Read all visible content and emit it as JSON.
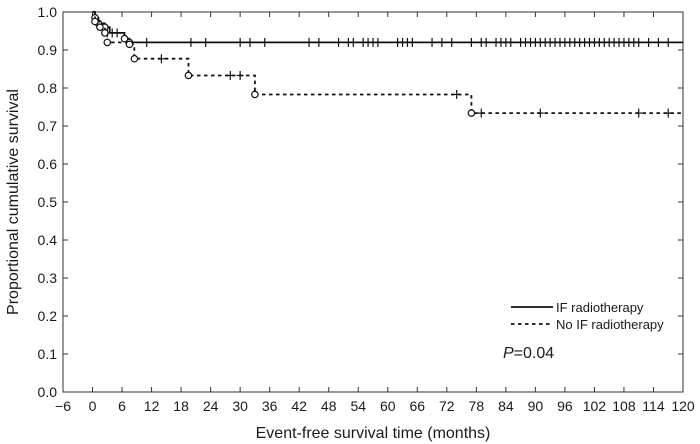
{
  "chart_data": {
    "type": "line",
    "title": "",
    "xlabel": "Event-free survival time (months)",
    "ylabel": "Proportional cumulative survival",
    "xlim": [
      -6,
      120
    ],
    "ylim": [
      0.0,
      1.0
    ],
    "x_ticks": [
      -6,
      0,
      6,
      12,
      18,
      24,
      30,
      36,
      42,
      48,
      54,
      60,
      66,
      72,
      78,
      84,
      90,
      96,
      102,
      108,
      114,
      120
    ],
    "y_ticks": [
      0.0,
      0.1,
      0.2,
      0.3,
      0.4,
      0.5,
      0.6,
      0.7,
      0.8,
      0.9,
      1.0
    ],
    "x_tick_labels": [
      "−6",
      "0",
      "6",
      "12",
      "18",
      "24",
      "30",
      "36",
      "42",
      "48",
      "54",
      "60",
      "66",
      "72",
      "78",
      "84",
      "90",
      "96",
      "102",
      "108",
      "114",
      "120"
    ],
    "y_tick_labels": [
      "0.0",
      "0.1",
      "0.2",
      "0.3",
      "0.4",
      "0.5",
      "0.6",
      "0.7",
      "0.8",
      "0.9",
      "1.0"
    ],
    "grid": false,
    "legend_position": "bottom-right",
    "annotation": {
      "italic": "P",
      "rest": "=0.04"
    },
    "series": [
      {
        "name": "IF radiotherapy",
        "line_style": "solid",
        "steps": [
          [
            0,
            1.0
          ],
          [
            0.5,
            0.985
          ],
          [
            1.2,
            0.97
          ],
          [
            2.5,
            0.96
          ],
          [
            3.5,
            0.945
          ],
          [
            6.5,
            0.93
          ],
          [
            7.5,
            0.92
          ],
          [
            120,
            0.92
          ]
        ],
        "events": [
          [
            0.5,
            0.985
          ],
          [
            1.2,
            0.97
          ],
          [
            2.5,
            0.96
          ],
          [
            6.5,
            0.93
          ],
          [
            7.5,
            0.92
          ]
        ],
        "censored": [
          [
            3,
            0.945
          ],
          [
            4,
            0.945
          ],
          [
            5,
            0.945
          ],
          [
            11,
            0.92
          ],
          [
            20,
            0.92
          ],
          [
            23,
            0.92
          ],
          [
            30,
            0.92
          ],
          [
            32,
            0.92
          ],
          [
            35,
            0.92
          ],
          [
            44,
            0.92
          ],
          [
            46,
            0.92
          ],
          [
            50,
            0.92
          ],
          [
            52,
            0.92
          ],
          [
            53,
            0.92
          ],
          [
            55,
            0.92
          ],
          [
            56,
            0.92
          ],
          [
            57,
            0.92
          ],
          [
            58,
            0.92
          ],
          [
            62,
            0.92
          ],
          [
            63,
            0.92
          ],
          [
            64,
            0.92
          ],
          [
            65,
            0.92
          ],
          [
            69,
            0.92
          ],
          [
            71,
            0.92
          ],
          [
            73,
            0.92
          ],
          [
            77,
            0.92
          ],
          [
            79,
            0.92
          ],
          [
            80,
            0.92
          ],
          [
            82,
            0.92
          ],
          [
            83,
            0.92
          ],
          [
            84,
            0.92
          ],
          [
            85,
            0.92
          ],
          [
            87,
            0.92
          ],
          [
            88,
            0.92
          ],
          [
            89,
            0.92
          ],
          [
            90,
            0.92
          ],
          [
            91,
            0.92
          ],
          [
            92,
            0.92
          ],
          [
            93,
            0.92
          ],
          [
            94,
            0.92
          ],
          [
            95,
            0.92
          ],
          [
            96,
            0.92
          ],
          [
            97,
            0.92
          ],
          [
            98,
            0.92
          ],
          [
            99,
            0.92
          ],
          [
            100,
            0.92
          ],
          [
            101,
            0.92
          ],
          [
            102,
            0.92
          ],
          [
            103,
            0.92
          ],
          [
            104,
            0.92
          ],
          [
            105,
            0.92
          ],
          [
            106,
            0.92
          ],
          [
            107,
            0.92
          ],
          [
            108,
            0.92
          ],
          [
            109,
            0.92
          ],
          [
            110,
            0.92
          ],
          [
            111,
            0.92
          ],
          [
            113,
            0.92
          ],
          [
            115,
            0.92
          ],
          [
            117,
            0.92
          ]
        ]
      },
      {
        "name": "No IF radiotherapy",
        "line_style": "dotted",
        "steps": [
          [
            0,
            1.0
          ],
          [
            0.5,
            0.975
          ],
          [
            1.5,
            0.96
          ],
          [
            2.5,
            0.945
          ],
          [
            3,
            0.92
          ],
          [
            7.5,
            0.915
          ],
          [
            8.5,
            0.877
          ],
          [
            19.5,
            0.833
          ],
          [
            33,
            0.783
          ],
          [
            77,
            0.734
          ],
          [
            120,
            0.734
          ]
        ],
        "events": [
          [
            0.5,
            0.975
          ],
          [
            1.5,
            0.96
          ],
          [
            2.5,
            0.945
          ],
          [
            3,
            0.92
          ],
          [
            7.5,
            0.915
          ],
          [
            8.5,
            0.877
          ],
          [
            19.5,
            0.833
          ],
          [
            33,
            0.783
          ],
          [
            77,
            0.734
          ]
        ],
        "censored": [
          [
            14,
            0.877
          ],
          [
            28,
            0.833
          ],
          [
            30,
            0.833
          ],
          [
            74,
            0.783
          ],
          [
            79,
            0.734
          ],
          [
            91,
            0.734
          ],
          [
            111,
            0.734
          ],
          [
            117,
            0.734
          ]
        ]
      }
    ]
  }
}
